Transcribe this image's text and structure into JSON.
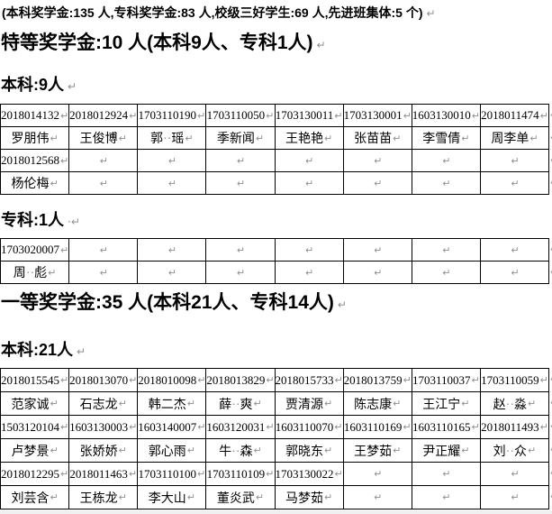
{
  "marks": {
    "return": "↵",
    "space_return": "·↵"
  },
  "intro": {
    "text": "(本科奖学金:135 人,专科奖学金:83 人,校级三好学生:69 人,先进班集体:5 个)"
  },
  "headings": {
    "special": {
      "text": "特等奖学金:10 人(本科9人、专科1人)"
    },
    "special_undergrad": {
      "text": "本科:9人"
    },
    "special_college": {
      "text": "专科:1人"
    },
    "first": {
      "text": "一等奖学金:35 人(本科21人、专科14人)"
    },
    "first_undergrad": {
      "text": "本科:21人"
    }
  },
  "tables": [
    {
      "title": "特等奖学金-本科",
      "rows": [
        {
          "kind": "id",
          "cells": [
            "2018014132",
            "2018012924",
            "1703110190",
            "1703110050",
            "1703130011",
            "1703130001",
            "1603130010",
            "2018011474"
          ]
        },
        {
          "kind": "name",
          "cells": [
            "罗朋伟",
            "王俊博",
            "郭··瑶",
            "季新闻",
            "王艳艳",
            "张苗苗",
            "李雪倩",
            "周李单"
          ]
        },
        {
          "kind": "id",
          "cells": [
            "2018012568",
            "",
            "",
            "",
            "",
            "",
            "",
            ""
          ]
        },
        {
          "kind": "name",
          "cells": [
            "杨伦梅",
            "",
            "",
            "",
            "",
            "",
            "",
            ""
          ]
        }
      ]
    },
    {
      "title": "特等奖学金-专科",
      "rows": [
        {
          "kind": "id",
          "cells": [
            "1703020007",
            "",
            "",
            "",
            "",
            "",
            "",
            ""
          ]
        },
        {
          "kind": "name",
          "cells": [
            "周··彪",
            "",
            "",
            "",
            "",
            "",
            "",
            ""
          ]
        }
      ]
    },
    {
      "title": "一等奖学金-本科",
      "rows": [
        {
          "kind": "id",
          "cells": [
            "2018015545",
            "2018013070",
            "2018010098",
            "2018013829",
            "2018015733",
            "2018013759",
            "1703110037",
            "1703110059"
          ]
        },
        {
          "kind": "name",
          "cells": [
            "范家诚",
            "石志龙",
            "韩二杰",
            "薛··爽",
            "贾清源",
            "陈志康",
            "王江宁",
            "赵··淼"
          ]
        },
        {
          "kind": "id",
          "cells": [
            "1503120104",
            "1603130003",
            "1603140007",
            "1603120031",
            "1603110070",
            "1603110169",
            "1603110165",
            "2018011493"
          ]
        },
        {
          "kind": "name",
          "cells": [
            "卢梦景",
            "张娇娇",
            "郭心雨",
            "牛··森",
            "郭晓东",
            "王梦茹",
            "尹正耀",
            "刘··众"
          ]
        },
        {
          "kind": "id",
          "cells": [
            "2018012295",
            "2018011463",
            "1703110100",
            "1703110109",
            "1703130022",
            "",
            "",
            ""
          ]
        },
        {
          "kind": "name",
          "cells": [
            "刘芸含",
            "王栋龙",
            "李大山",
            "董炎武",
            "马梦茹",
            "",
            "",
            ""
          ]
        }
      ]
    }
  ]
}
